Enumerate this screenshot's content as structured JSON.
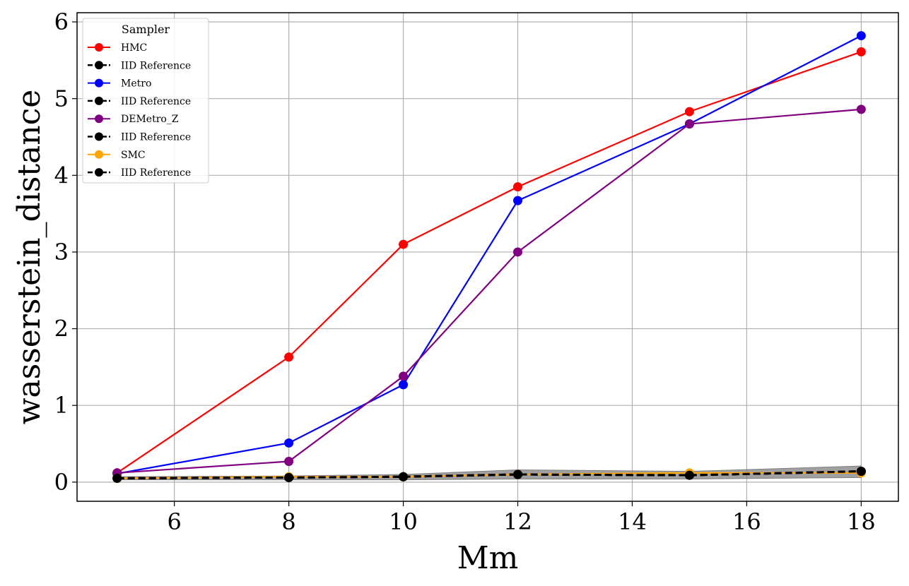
{
  "chart_data": {
    "type": "line",
    "title": "",
    "xlabel": "Mm",
    "ylabel": "wasserstein_distance",
    "xlim": [
      4.3,
      18.65
    ],
    "ylim": [
      -0.25,
      6.12
    ],
    "xticks": [
      6,
      8,
      10,
      12,
      14,
      16,
      18
    ],
    "yticks": [
      0,
      1,
      2,
      3,
      4,
      5,
      6
    ],
    "grid": true,
    "legend": {
      "title": "Sampler",
      "placement": "top-left"
    },
    "x": [
      5,
      8,
      10,
      12,
      15,
      18
    ],
    "series": [
      {
        "name": "HMC",
        "color": "#ff0000",
        "style": "solid",
        "values": [
          0.12,
          1.63,
          3.1,
          3.85,
          4.83,
          5.61
        ]
      },
      {
        "name": "IID Reference",
        "color": "#000000",
        "style": "dashed",
        "values": [
          0.05,
          0.06,
          0.07,
          0.1,
          0.09,
          0.14
        ]
      },
      {
        "name": "Metro",
        "color": "#0000ff",
        "style": "solid",
        "values": [
          0.11,
          0.51,
          1.27,
          3.67,
          4.67,
          5.82
        ]
      },
      {
        "name": "IID Reference",
        "color": "#000000",
        "style": "dashed",
        "values": [
          0.05,
          0.06,
          0.07,
          0.1,
          0.09,
          0.14
        ]
      },
      {
        "name": "DEMetro_Z",
        "color": "#800080",
        "style": "solid",
        "values": [
          0.12,
          0.27,
          1.38,
          3.0,
          4.67,
          4.86
        ]
      },
      {
        "name": "IID Reference",
        "color": "#000000",
        "style": "dashed",
        "values": [
          0.05,
          0.06,
          0.07,
          0.1,
          0.09,
          0.14
        ]
      },
      {
        "name": "SMC",
        "color": "#ffa500",
        "style": "solid",
        "values": [
          0.05,
          0.07,
          0.07,
          0.1,
          0.12,
          0.12
        ]
      },
      {
        "name": "IID Reference",
        "color": "#000000",
        "style": "dashed",
        "values": [
          0.05,
          0.06,
          0.07,
          0.1,
          0.09,
          0.14
        ]
      }
    ],
    "band": {
      "color": "#808080",
      "lower": [
        0.03,
        0.03,
        0.03,
        0.04,
        0.04,
        0.06
      ],
      "upper": [
        0.07,
        0.08,
        0.1,
        0.16,
        0.14,
        0.21
      ]
    }
  }
}
